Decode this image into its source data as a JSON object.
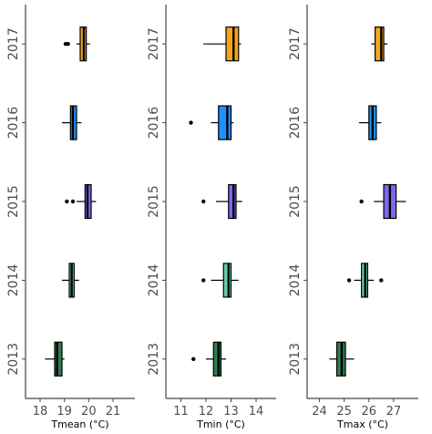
{
  "chart_data": [
    {
      "type": "boxplot",
      "xlabel": "Tmean (°C)",
      "xlim": [
        17.4,
        21.9
      ],
      "xticks": [
        18,
        19,
        20,
        21
      ],
      "categories": [
        "2013",
        "2014",
        "2015",
        "2016",
        "2017"
      ],
      "colors": [
        "#2e7d4f",
        "#66cdaa",
        "#7b68ee",
        "#1e90ff",
        "#f5a31a"
      ],
      "boxes": [
        {
          "year": "2013",
          "whisker_low": 18.2,
          "q1": 18.6,
          "median": 18.7,
          "q3": 18.9,
          "whisker_high": 19.0,
          "outliers": []
        },
        {
          "year": "2014",
          "whisker_low": 18.9,
          "q1": 19.2,
          "median": 19.3,
          "q3": 19.4,
          "whisker_high": 19.6,
          "outliers": []
        },
        {
          "year": "2015",
          "whisker_low": 19.5,
          "q1": 19.85,
          "median": 19.95,
          "q3": 20.1,
          "whisker_high": 20.3,
          "outliers": [
            19.1,
            19.35
          ]
        },
        {
          "year": "2016",
          "whisker_low": 18.9,
          "q1": 19.25,
          "median": 19.35,
          "q3": 19.5,
          "whisker_high": 19.7,
          "outliers": []
        },
        {
          "year": "2017",
          "whisker_low": 19.5,
          "q1": 19.65,
          "median": 19.8,
          "q3": 19.9,
          "whisker_high": 20.05,
          "outliers": [
            19.05,
            19.15
          ]
        }
      ]
    },
    {
      "type": "boxplot",
      "xlabel": "Tmin (°C)",
      "xlim": [
        10.4,
        14.8
      ],
      "xticks": [
        11,
        12,
        13,
        14
      ],
      "categories": [
        "2013",
        "2014",
        "2015",
        "2016",
        "2017"
      ],
      "colors": [
        "#2e7d4f",
        "#66cdaa",
        "#7b68ee",
        "#1e90ff",
        "#f5a31a"
      ],
      "boxes": [
        {
          "year": "2013",
          "whisker_low": 12.0,
          "q1": 12.3,
          "median": 12.5,
          "q3": 12.6,
          "whisker_high": 12.8,
          "outliers": [
            11.5
          ]
        },
        {
          "year": "2014",
          "whisker_low": 12.2,
          "q1": 12.7,
          "median": 12.9,
          "q3": 13.0,
          "whisker_high": 13.3,
          "outliers": [
            11.9
          ]
        },
        {
          "year": "2015",
          "whisker_low": 12.4,
          "q1": 12.9,
          "median": 13.1,
          "q3": 13.2,
          "whisker_high": 13.45,
          "outliers": [
            11.9
          ]
        },
        {
          "year": "2016",
          "whisker_low": 12.2,
          "q1": 12.5,
          "median": 12.85,
          "q3": 13.0,
          "whisker_high": 13.1,
          "outliers": [
            11.4
          ]
        },
        {
          "year": "2017",
          "whisker_low": 11.9,
          "q1": 12.8,
          "median": 13.1,
          "q3": 13.3,
          "whisker_high": 13.4,
          "outliers": []
        }
      ]
    },
    {
      "type": "boxplot",
      "xlabel": "Tmax (°C)",
      "xlim": [
        23.5,
        28.0
      ],
      "xticks": [
        24,
        25,
        26,
        27
      ],
      "categories": [
        "2013",
        "2014",
        "2015",
        "2016",
        "2017"
      ],
      "colors": [
        "#2e7d4f",
        "#66cdaa",
        "#7b68ee",
        "#1e90ff",
        "#f5a31a"
      ],
      "boxes": [
        {
          "year": "2013",
          "whisker_low": 24.4,
          "q1": 24.7,
          "median": 24.9,
          "q3": 25.05,
          "whisker_high": 25.4,
          "outliers": []
        },
        {
          "year": "2014",
          "whisker_low": 25.4,
          "q1": 25.7,
          "median": 25.85,
          "q3": 25.95,
          "whisker_high": 26.2,
          "outliers": [
            25.2,
            26.5
          ]
        },
        {
          "year": "2015",
          "whisker_low": 26.2,
          "q1": 26.6,
          "median": 26.85,
          "q3": 27.1,
          "whisker_high": 27.5,
          "outliers": [
            25.7
          ]
        },
        {
          "year": "2016",
          "whisker_low": 25.6,
          "q1": 26.0,
          "median": 26.15,
          "q3": 26.3,
          "whisker_high": 26.5,
          "outliers": []
        },
        {
          "year": "2017",
          "whisker_low": 26.1,
          "q1": 26.25,
          "median": 26.5,
          "q3": 26.6,
          "whisker_high": 26.75,
          "outliers": []
        }
      ]
    }
  ]
}
